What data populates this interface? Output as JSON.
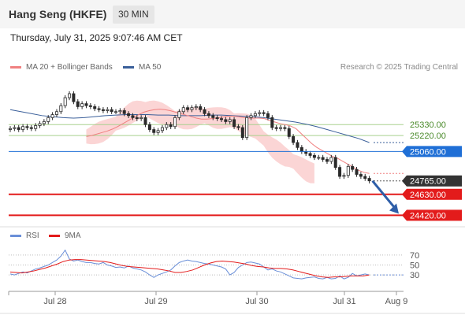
{
  "header": {
    "title": "Hang Seng (HKFE)",
    "timeframe": "30 MIN",
    "datetime": "Thursday, July 31, 2025 9:07:46 AM CET"
  },
  "legend": {
    "ma20_label": "MA 20 + Bollinger Bands",
    "ma50_label": "MA 50",
    "credit": "Research © 2025 Trading Central"
  },
  "rsi_legend": {
    "rsi_label": "RSI",
    "ma_label": "9MA"
  },
  "colors": {
    "ma20": "#f08080",
    "ma50": "#3a5f9a",
    "band_fill": "#fbd5d5",
    "candle": "#2a2a2a",
    "support": "#e31b1b",
    "pivot": "#1f6fd6",
    "resistance": "#a8d08d",
    "last_price": "#333333",
    "arrow": "#2e5ea8",
    "rsi": "#6a8fd8",
    "rsi_ma": "#e31b1b"
  },
  "chart_data": {
    "type": "candlestick",
    "price_range": [
      24320,
      25790
    ],
    "x_labels": [
      "Jul 28",
      "Jul 29",
      "Jul 30",
      "Jul 31",
      "Aug 9"
    ],
    "price_levels": [
      {
        "value": 25330,
        "label": "25330.00",
        "kind": "resistance"
      },
      {
        "value": 25220,
        "label": "25220.00",
        "kind": "resistance"
      },
      {
        "value": 25060,
        "label": "25060.00",
        "kind": "pivot"
      },
      {
        "value": 24765,
        "label": "24765.00",
        "kind": "last"
      },
      {
        "value": 24630,
        "label": "24630.00",
        "kind": "support"
      },
      {
        "value": 24420,
        "label": "24420.00",
        "kind": "support"
      }
    ],
    "arrow": {
      "from": 24765,
      "to": 24420
    },
    "closes": [
      25290,
      25300,
      25280,
      25310,
      25300,
      25290,
      25320,
      25340,
      25360,
      25400,
      25430,
      25460,
      25520,
      25600,
      25640,
      25560,
      25510,
      25540,
      25520,
      25510,
      25490,
      25480,
      25470,
      25480,
      25460,
      25460,
      25470,
      25440,
      25420,
      25400,
      25390,
      25400,
      25330,
      25280,
      25250,
      25270,
      25300,
      25330,
      25310,
      25400,
      25460,
      25500,
      25480,
      25500,
      25510,
      25480,
      25440,
      25420,
      25400,
      25390,
      25380,
      25360,
      25380,
      25310,
      25300,
      25200,
      25400,
      25420,
      25440,
      25450,
      25440,
      25400,
      25300,
      25290,
      25300,
      25290,
      25210,
      25150,
      25100,
      25060,
      25040,
      25020,
      25000,
      25000,
      24980,
      24960,
      25000,
      24900,
      24810,
      24820,
      24910,
      24880,
      24830,
      24810,
      24790,
      24765
    ],
    "ma20": [
      25210,
      25220,
      25235,
      25250,
      25265,
      25285,
      25310,
      25340,
      25370,
      25400,
      25430,
      25455,
      25470,
      25480,
      25485,
      25480,
      25470,
      25455,
      25440,
      25425,
      25410,
      25395,
      25385,
      25385,
      25390,
      25395,
      25405,
      25415,
      25415,
      25410,
      25400,
      25395,
      25395,
      25395,
      25390,
      25370,
      25355,
      25340,
      25330,
      25315,
      25290,
      25240,
      25190,
      25140,
      25100,
      25070,
      25040,
      25010,
      24990,
      24960,
      24930,
      24900,
      24870,
      24850,
      24840
    ],
    "ma50": [
      25480,
      25460,
      25440,
      25420,
      25410,
      25400,
      25395,
      25400,
      25410,
      25420,
      25425,
      25430,
      25430,
      25430,
      25425,
      25425,
      25420,
      25420,
      25420,
      25425,
      25425,
      25420,
      25415,
      25410,
      25400,
      25385,
      25370,
      25355,
      25335,
      25310,
      25280,
      25250,
      25220,
      25190,
      25150
    ],
    "rsi": {
      "levels": [
        70,
        50,
        30
      ],
      "range": [
        0,
        100
      ],
      "values": [
        32,
        30,
        33,
        36,
        34,
        38,
        42,
        44,
        47,
        50,
        55,
        60,
        68,
        80,
        62,
        58,
        60,
        57,
        55,
        55,
        53,
        52,
        55,
        50,
        48,
        45,
        46,
        44,
        48,
        44,
        42,
        40,
        36,
        30,
        25,
        30,
        33,
        36,
        40,
        48,
        55,
        58,
        60,
        58,
        57,
        55,
        53,
        52,
        50,
        48,
        46,
        42,
        30,
        35,
        45,
        50,
        55,
        56,
        54,
        52,
        46,
        40,
        42,
        38,
        36,
        32,
        28,
        24,
        23,
        22,
        24,
        25,
        26,
        23,
        22,
        25,
        22,
        23,
        28,
        22,
        25,
        33,
        28,
        30,
        32,
        30
      ],
      "ma9": [
        36,
        35,
        34,
        36,
        38,
        41,
        44,
        48,
        52,
        57,
        60,
        61,
        61,
        60,
        59,
        58,
        57,
        55,
        52,
        49,
        47,
        46,
        45,
        44,
        43,
        42,
        40,
        38,
        35,
        35,
        37,
        40,
        45,
        50,
        54,
        57,
        58,
        57,
        56,
        54,
        52,
        49,
        47,
        46,
        44,
        43,
        43,
        42,
        40,
        37,
        34,
        31,
        28,
        26,
        25,
        26,
        26,
        27,
        28,
        28,
        28,
        30
      ]
    }
  }
}
